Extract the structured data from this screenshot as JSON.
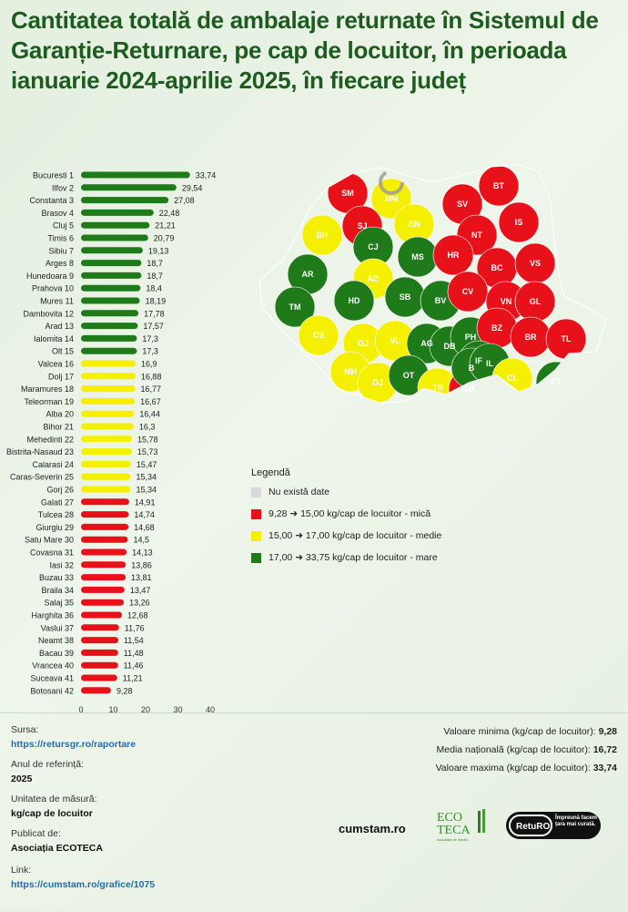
{
  "title": "Cantitatea totală de ambalaje returnate în Sistemul de Garanție-Returnare, pe cap de locuitor, în perioada ianuarie 2024-aprilie 2025, în fiecare județ",
  "chart_data": {
    "type": "bar",
    "orientation": "horizontal",
    "categories": [
      "Bucuresti 1",
      "Ilfov 2",
      "Constanta 3",
      "Brasov 4",
      "Cluj 5",
      "Timis 6",
      "Sibiu 7",
      "Arges 8",
      "Hunedoara 9",
      "Prahova 10",
      "Mures 11",
      "Dambovita 12",
      "Arad 13",
      "Ialomita 14",
      "Olt 15",
      "Valcea 16",
      "Dolj 17",
      "Maramures 18",
      "Teleorman 19",
      "Alba 20",
      "Bihor 21",
      "Mehedinti 22",
      "Bistrita-Nasaud 23",
      "Calarasi 24",
      "Caras-Severin 25",
      "Gorj 26",
      "Galati 27",
      "Tulcea 28",
      "Giurgiu 29",
      "Satu Mare 30",
      "Covasna 31",
      "Iasi 32",
      "Buzau 33",
      "Braila 34",
      "Salaj 35",
      "Harghita 36",
      "Vaslui 37",
      "Neamt 38",
      "Bacau 39",
      "Vrancea 40",
      "Suceava 41",
      "Botosani 42"
    ],
    "values": [
      33.74,
      29.54,
      27.08,
      22.48,
      21.21,
      20.79,
      19.13,
      18.7,
      18.7,
      18.4,
      18.19,
      17.78,
      17.57,
      17.3,
      17.3,
      16.9,
      16.88,
      16.77,
      16.67,
      16.44,
      16.3,
      15.78,
      15.73,
      15.47,
      15.34,
      15.34,
      14.91,
      14.74,
      14.68,
      14.5,
      14.13,
      13.86,
      13.81,
      13.47,
      13.26,
      12.68,
      11.76,
      11.54,
      11.48,
      11.46,
      11.21,
      9.28
    ],
    "value_labels": [
      "33,74",
      "29,54",
      "27,08",
      "22,48",
      "21,21",
      "20,79",
      "19,13",
      "18,7",
      "18,7",
      "18,4",
      "18,19",
      "17,78",
      "17,57",
      "17,3",
      "17,3",
      "16,9",
      "16,88",
      "16,77",
      "16,67",
      "16,44",
      "16,3",
      "15,78",
      "15,73",
      "15,47",
      "15,34",
      "15,34",
      "14,91",
      "14,74",
      "14,68",
      "14,5",
      "14,13",
      "13,86",
      "13,81",
      "13,47",
      "13,26",
      "12,68",
      "11,76",
      "11,54",
      "11,48",
      "11,46",
      "11,21",
      "9,28"
    ],
    "xlim": [
      0,
      40
    ],
    "xticks": [
      "0",
      "10",
      "20",
      "30",
      "40"
    ],
    "color_classes": [
      {
        "min": 17.0,
        "max": 33.75,
        "color": "#1f7a1a"
      },
      {
        "min": 15.0,
        "max": 17.0,
        "color": "#f5f000"
      },
      {
        "min": 9.28,
        "max": 15.0,
        "color": "#e8111a"
      }
    ],
    "legend_placement": "right, below map",
    "grid": false
  },
  "map": {
    "counties": [
      {
        "code": "SM",
        "color": "#e8111a"
      },
      {
        "code": "MM",
        "color": "#f5f000"
      },
      {
        "code": "BN",
        "color": "#f5f000"
      },
      {
        "code": "SV",
        "color": "#e8111a"
      },
      {
        "code": "BT",
        "color": "#e8111a"
      },
      {
        "code": "SJ",
        "color": "#e8111a"
      },
      {
        "code": "BH",
        "color": "#f5f000"
      },
      {
        "code": "CJ",
        "color": "#1f7a1a"
      },
      {
        "code": "MS",
        "color": "#1f7a1a"
      },
      {
        "code": "NT",
        "color": "#e8111a"
      },
      {
        "code": "IS",
        "color": "#e8111a"
      },
      {
        "code": "HR",
        "color": "#e8111a"
      },
      {
        "code": "BC",
        "color": "#e8111a"
      },
      {
        "code": "VS",
        "color": "#e8111a"
      },
      {
        "code": "AR",
        "color": "#1f7a1a"
      },
      {
        "code": "AB",
        "color": "#f5f000"
      },
      {
        "code": "HD",
        "color": "#1f7a1a"
      },
      {
        "code": "SB",
        "color": "#1f7a1a"
      },
      {
        "code": "BV",
        "color": "#1f7a1a"
      },
      {
        "code": "CV",
        "color": "#e8111a"
      },
      {
        "code": "VN",
        "color": "#e8111a"
      },
      {
        "code": "GL",
        "color": "#e8111a"
      },
      {
        "code": "TM",
        "color": "#1f7a1a"
      },
      {
        "code": "CS",
        "color": "#f5f000"
      },
      {
        "code": "GJ",
        "color": "#f5f000"
      },
      {
        "code": "VL",
        "color": "#f5f000"
      },
      {
        "code": "AG",
        "color": "#1f7a1a"
      },
      {
        "code": "DB",
        "color": "#1f7a1a"
      },
      {
        "code": "PH",
        "color": "#1f7a1a"
      },
      {
        "code": "BZ",
        "color": "#e8111a"
      },
      {
        "code": "BR",
        "color": "#e8111a"
      },
      {
        "code": "TL",
        "color": "#e8111a"
      },
      {
        "code": "MH",
        "color": "#f5f000"
      },
      {
        "code": "DJ",
        "color": "#f5f000"
      },
      {
        "code": "OT",
        "color": "#1f7a1a"
      },
      {
        "code": "TR",
        "color": "#f5f000"
      },
      {
        "code": "GR",
        "color": "#e8111a"
      },
      {
        "code": "IF",
        "color": "#1f7a1a"
      },
      {
        "code": "B",
        "color": "#1f7a1a"
      },
      {
        "code": "IL",
        "color": "#1f7a1a"
      },
      {
        "code": "CL",
        "color": "#f5f000"
      },
      {
        "code": "CT",
        "color": "#1f7a1a"
      }
    ]
  },
  "legend": {
    "title": "Legendă",
    "items": [
      {
        "label": "Nu există date",
        "color": "#d9d9d9"
      },
      {
        "label": "9,28 ➜ 15,00 kg/cap de locuitor - mică",
        "color": "#e8111a"
      },
      {
        "label": "15,00 ➜ 17,00 kg/cap de locuitor - medie",
        "color": "#f5f000"
      },
      {
        "label": "17,00 ➜ 33,75 kg/cap de locuitor - mare",
        "color": "#1f7a1a"
      }
    ]
  },
  "footer": {
    "source_label": "Sursa:",
    "source_value": "https://retursgr.ro/raportare",
    "ref_year_label": "Anul de referință:",
    "ref_year_value": "2025",
    "unit_label": "Unitatea de măsură:",
    "unit_value": "kg/cap de locuitor",
    "publisher_label": "Publicat de:",
    "publisher_value": "Asociația ECOTECA",
    "link_label": "Link:",
    "link_value": "https://cumstam.ro/grafice/1075",
    "min_label": "Valoare minima (kg/cap de locuitor):",
    "min_value": "9,28",
    "avg_label": "Media națională (kg/cap de locuitor):",
    "avg_value": "16,72",
    "max_label": "Valoare maxima (kg/cap de locuitor):",
    "max_value": "33,74"
  },
  "logos": {
    "cumstam": "cumstam.ro",
    "ecoteca_line1": "ECO",
    "ecoteca_line2": "TECA",
    "ecoteca_tagline": "Asociația de mediu",
    "returo_name": "RetuRO",
    "returo_tagline": "Împreună facem țara mai curată."
  }
}
